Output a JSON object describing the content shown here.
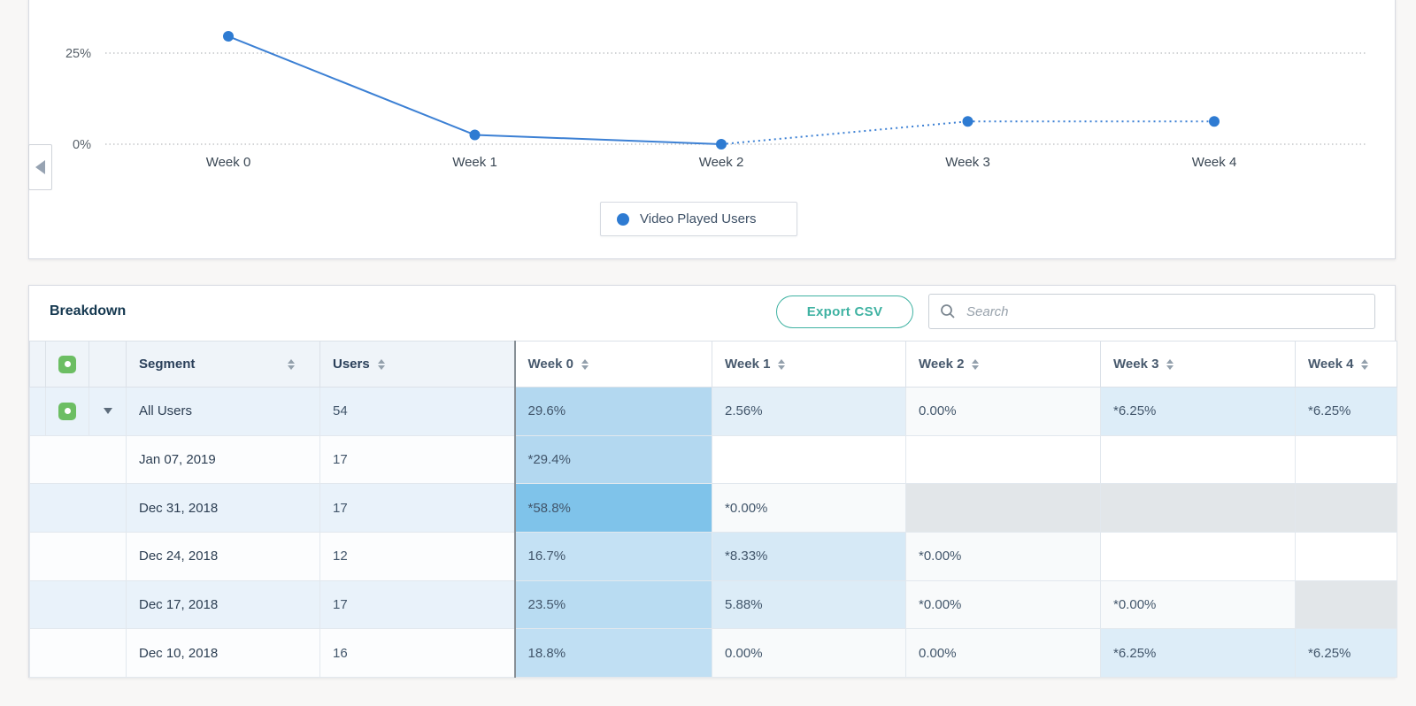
{
  "accents": {
    "teal": "#3fb2a2",
    "checkbox_green": "#6cbe63",
    "series_blue": "#2e7bd2",
    "heat_dark_divider": "#878f96"
  },
  "chart_data": {
    "type": "line",
    "categories": [
      "Week 0",
      "Week 1",
      "Week 2",
      "Week 3",
      "Week 4"
    ],
    "series": [
      {
        "name": "Video Played Users",
        "values": [
          29.6,
          2.56,
          0.0,
          6.25,
          6.25
        ],
        "estimated": [
          false,
          false,
          false,
          true,
          true
        ],
        "color": "#2e7bd2"
      }
    ],
    "xlabel": "",
    "ylabel": "",
    "yticks": [
      {
        "value": 0,
        "label": "0%"
      },
      {
        "value": 25,
        "label": "25%"
      }
    ],
    "ylim": [
      0,
      30
    ],
    "grid": "dotted-horizontal",
    "legend_position": "bottom-center"
  },
  "chart": {
    "legend_label": "Video Played Users"
  },
  "breakdown": {
    "title": "Breakdown",
    "export_label": "Export CSV",
    "search_placeholder": "Search",
    "columns": [
      {
        "label": "Segment"
      },
      {
        "label": "Users"
      },
      {
        "label": "Week 0"
      },
      {
        "label": "Week 1"
      },
      {
        "label": "Week 2"
      },
      {
        "label": "Week 3"
      },
      {
        "label": "Week 4"
      }
    ],
    "rows": [
      {
        "segment": "All Users",
        "users": "54",
        "selected": true,
        "expanded": true,
        "stripe": "#e9f2fa",
        "weeks": [
          {
            "text": "29.6%",
            "bg": "#b3d8f0"
          },
          {
            "text": "2.56%",
            "bg": "#e3eff8"
          },
          {
            "text": "0.00%",
            "bg": "#f8fafb"
          },
          {
            "text": "*6.25%",
            "bg": "#ddedf8"
          },
          {
            "text": "*6.25%",
            "bg": "#ddedf8"
          }
        ]
      },
      {
        "segment": "Jan 07, 2019",
        "users": "17",
        "stripe": "#fcfdfe",
        "weeks": [
          {
            "text": "*29.4%",
            "bg": "#b3d8f0"
          },
          {
            "text": "",
            "bg": "#ffffff"
          },
          {
            "text": "",
            "bg": "#ffffff"
          },
          {
            "text": "",
            "bg": "#ffffff"
          },
          {
            "text": "",
            "bg": "#ffffff"
          }
        ]
      },
      {
        "segment": "Dec 31, 2018",
        "users": "17",
        "stripe": "#e9f2fa",
        "weeks": [
          {
            "text": "*58.8%",
            "bg": "#7fc3ea"
          },
          {
            "text": "*0.00%",
            "bg": "#f8fafb"
          },
          {
            "text": "",
            "bg": "#e2e6e9"
          },
          {
            "text": "",
            "bg": "#e2e6e9"
          },
          {
            "text": "",
            "bg": "#e2e6e9"
          }
        ]
      },
      {
        "segment": "Dec 24, 2018",
        "users": "12",
        "stripe": "#fcfdfe",
        "weeks": [
          {
            "text": "16.7%",
            "bg": "#c4e1f4"
          },
          {
            "text": "*8.33%",
            "bg": "#d6e9f6"
          },
          {
            "text": "*0.00%",
            "bg": "#f8fafb"
          },
          {
            "text": "",
            "bg": "#ffffff"
          },
          {
            "text": "",
            "bg": "#ffffff"
          }
        ]
      },
      {
        "segment": "Dec 17, 2018",
        "users": "17",
        "stripe": "#e9f2fa",
        "weeks": [
          {
            "text": "23.5%",
            "bg": "#b9dcf2"
          },
          {
            "text": "5.88%",
            "bg": "#dcecf7"
          },
          {
            "text": "*0.00%",
            "bg": "#f8fafb"
          },
          {
            "text": "*0.00%",
            "bg": "#f8fafb"
          },
          {
            "text": "",
            "bg": "#e2e6e9"
          }
        ]
      },
      {
        "segment": "Dec 10, 2018",
        "users": "16",
        "stripe": "#fcfdfe",
        "weeks": [
          {
            "text": "18.8%",
            "bg": "#c0dff3"
          },
          {
            "text": "0.00%",
            "bg": "#f8fafb"
          },
          {
            "text": "0.00%",
            "bg": "#f8fafb"
          },
          {
            "text": "*6.25%",
            "bg": "#ddedf8"
          },
          {
            "text": "*6.25%",
            "bg": "#ddedf8"
          }
        ]
      }
    ]
  }
}
